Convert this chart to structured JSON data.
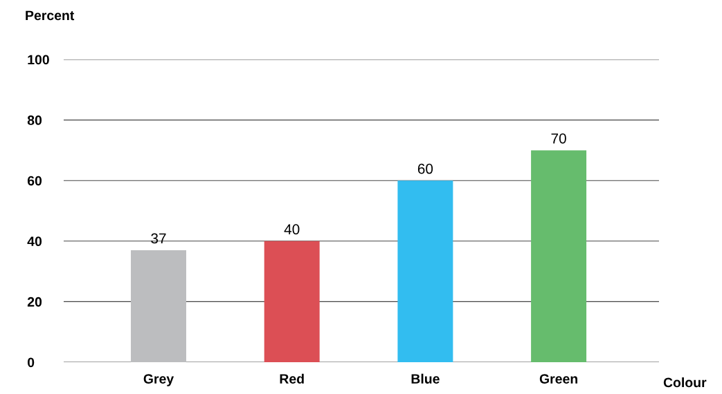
{
  "chart_data": {
    "type": "bar",
    "xlabel": "Colour",
    "ylabel": "Percent",
    "categories": [
      "Grey",
      "Red",
      "Blue",
      "Green"
    ],
    "values": [
      37,
      40,
      60,
      70
    ],
    "colors": [
      "#bcbdbf",
      "#dc4f55",
      "#32bdf0",
      "#66bc6d"
    ],
    "ylim": [
      0,
      100
    ],
    "yticks": [
      0,
      20,
      40,
      60,
      80,
      100
    ],
    "grid": "y",
    "data_labels": true
  }
}
